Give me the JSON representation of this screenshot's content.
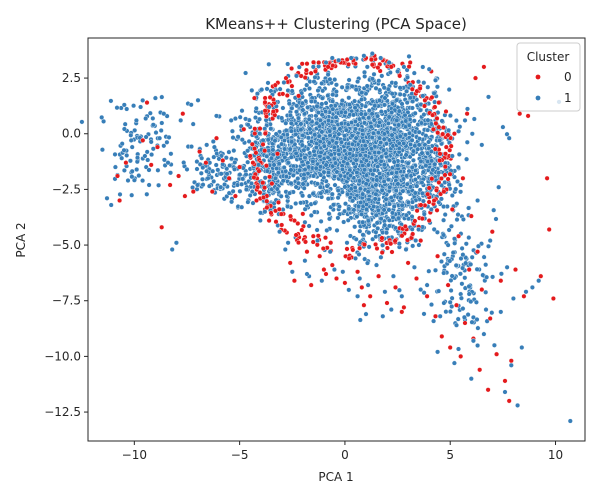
{
  "chart_data": {
    "type": "scatter",
    "title": "KMeans++ Clustering (PCA Space)",
    "xlabel": "PCA 1",
    "ylabel": "PCA 2",
    "xlim": [
      -12.2,
      11.4
    ],
    "ylim": [
      -13.8,
      4.3
    ],
    "xticks": [
      -10,
      -5,
      0,
      5,
      10
    ],
    "xtick_labels": [
      "−10",
      "−5",
      "0",
      "5",
      "10"
    ],
    "yticks": [
      2.5,
      0.0,
      -2.5,
      -5.0,
      -7.5,
      -10.0,
      -12.5
    ],
    "ytick_labels": [
      "2.5",
      "0.0",
      "−2.5",
      "−5.0",
      "−7.5",
      "−10.0",
      "−12.5"
    ],
    "grid": false,
    "legend": {
      "title": "Cluster",
      "placement": "top-right"
    },
    "series": [
      {
        "name": "0",
        "color": "#e41a1c",
        "points": [
          [
            -10.8,
            -1.9
          ],
          [
            -10.7,
            -3.0
          ],
          [
            -10.4,
            -1.3
          ],
          [
            -9.6,
            -0.3
          ],
          [
            -9.2,
            -1.4
          ],
          [
            -9.4,
            1.4
          ],
          [
            -8.9,
            -0.6
          ],
          [
            -8.7,
            -4.2
          ],
          [
            -8.3,
            -2.3
          ],
          [
            -7.9,
            -1.9
          ],
          [
            -7.6,
            -2.8
          ],
          [
            -7.7,
            0.9
          ],
          [
            -7.2,
            -2.6
          ],
          [
            -6.9,
            -0.8
          ],
          [
            -6.6,
            -1.3
          ],
          [
            -6.3,
            -2.6
          ],
          [
            -6.1,
            -0.2
          ],
          [
            -5.8,
            -1.2
          ],
          [
            -5.5,
            -2.0
          ],
          [
            -5.2,
            -2.8
          ],
          [
            -5.0,
            -1.5
          ],
          [
            -4.8,
            0.2
          ],
          [
            -4.5,
            -1.0
          ],
          [
            -4.2,
            -3.0
          ],
          [
            -4.3,
            1.6
          ],
          [
            -3.9,
            -2.2
          ],
          [
            -3.6,
            -3.9
          ],
          [
            -3.4,
            1.0
          ],
          [
            -3.2,
            -0.9
          ],
          [
            -3.0,
            -4.1
          ],
          [
            -2.8,
            2.5
          ],
          [
            -2.6,
            -5.8
          ],
          [
            -2.4,
            -6.6
          ],
          [
            -2.2,
            1.7
          ],
          [
            -2.0,
            -3.6
          ],
          [
            -1.8,
            -5.3
          ],
          [
            -1.6,
            -6.8
          ],
          [
            -1.4,
            2.8
          ],
          [
            -1.2,
            -5.5
          ],
          [
            -1.0,
            -6.1
          ],
          [
            -0.8,
            3.0
          ],
          [
            -0.6,
            -5.9
          ],
          [
            -0.4,
            -6.5
          ],
          [
            -0.2,
            3.2
          ],
          [
            0.0,
            -6.7
          ],
          [
            0.2,
            -5.6
          ],
          [
            0.4,
            3.3
          ],
          [
            0.6,
            -6.2
          ],
          [
            0.8,
            -6.9
          ],
          [
            1.0,
            3.4
          ],
          [
            1.2,
            -7.3
          ],
          [
            1.4,
            3.5
          ],
          [
            1.6,
            -6.4
          ],
          [
            1.8,
            3.3
          ],
          [
            2.0,
            -7.6
          ],
          [
            2.2,
            3.0
          ],
          [
            2.4,
            -6.9
          ],
          [
            2.6,
            2.6
          ],
          [
            2.8,
            -7.8
          ],
          [
            3.0,
            -5.8
          ],
          [
            3.2,
            2.0
          ],
          [
            3.4,
            -6.5
          ],
          [
            3.6,
            -4.8
          ],
          [
            3.8,
            1.5
          ],
          [
            3.9,
            -7.3
          ],
          [
            4.0,
            -3.9
          ],
          [
            4.1,
            2.8
          ],
          [
            4.2,
            0.2
          ],
          [
            4.3,
            -8.2
          ],
          [
            4.4,
            -5.5
          ],
          [
            4.5,
            -1.2
          ],
          [
            4.6,
            -9.1
          ],
          [
            4.7,
            -2.6
          ],
          [
            4.8,
            1.0
          ],
          [
            4.9,
            -6.8
          ],
          [
            5.0,
            -9.6
          ],
          [
            5.1,
            -3.4
          ],
          [
            5.2,
            0.0
          ],
          [
            5.3,
            -7.7
          ],
          [
            5.4,
            -4.6
          ],
          [
            5.5,
            -10.0
          ],
          [
            5.6,
            -2.0
          ],
          [
            5.7,
            -8.5
          ],
          [
            5.8,
            0.9
          ],
          [
            5.9,
            -6.1
          ],
          [
            6.0,
            -3.7
          ],
          [
            6.1,
            -9.2
          ],
          [
            6.2,
            2.5
          ],
          [
            6.3,
            -5.3
          ],
          [
            6.4,
            -10.6
          ],
          [
            6.5,
            -7.0
          ],
          [
            6.6,
            3.0
          ],
          [
            6.8,
            -11.5
          ],
          [
            6.9,
            -8.3
          ],
          [
            7.0,
            -4.4
          ],
          [
            7.2,
            -9.9
          ],
          [
            7.4,
            -6.6
          ],
          [
            7.6,
            -11.1
          ],
          [
            7.8,
            -12.0
          ],
          [
            7.9,
            -10.2
          ],
          [
            8.1,
            -6.1
          ],
          [
            8.3,
            0.9
          ],
          [
            8.5,
            -7.3
          ],
          [
            8.7,
            0.8
          ],
          [
            9.3,
            -6.4
          ],
          [
            9.6,
            -2.0
          ],
          [
            9.7,
            -4.3
          ],
          [
            9.9,
            -7.4
          ],
          [
            3.1,
            3.2
          ],
          [
            0.9,
            -7.7
          ],
          [
            -0.9,
            -6.3
          ],
          [
            2.7,
            -8.0
          ],
          [
            -1.5,
            -4.6
          ]
        ]
      },
      {
        "name": "1",
        "color": "#377eb8",
        "points": [
          [
            -11.3,
            -2.9
          ],
          [
            -11.1,
            -3.2
          ],
          [
            -10.9,
            -1.5
          ],
          [
            -10.6,
            -1.1
          ],
          [
            -10.3,
            -2.1
          ],
          [
            -10.1,
            -0.6
          ],
          [
            -9.9,
            0.6
          ],
          [
            -9.7,
            1.2
          ],
          [
            -9.5,
            -1.0
          ],
          [
            -9.3,
            -2.3
          ],
          [
            -9.1,
            0.4
          ],
          [
            -9.0,
            1.6
          ],
          [
            -8.8,
            -0.2
          ],
          [
            -8.6,
            0.9
          ],
          [
            -8.4,
            -1.3
          ],
          [
            -8.2,
            -5.2
          ],
          [
            -8.0,
            -4.9
          ],
          [
            -7.8,
            0.6
          ],
          [
            -7.5,
            -1.6
          ],
          [
            -7.3,
            1.3
          ],
          [
            -7.0,
            -2.3
          ],
          [
            -6.8,
            -1.1
          ],
          [
            -6.5,
            -2.0
          ],
          [
            -6.2,
            -0.6
          ],
          [
            -5.9,
            -2.4
          ],
          [
            -5.6,
            -1.8
          ],
          [
            -5.4,
            0.6
          ],
          [
            -5.1,
            -2.3
          ],
          [
            -4.9,
            -3.3
          ],
          [
            -4.6,
            0.4
          ],
          [
            -4.4,
            -2.6
          ],
          [
            -4.1,
            -1.4
          ],
          [
            -3.8,
            -3.5
          ],
          [
            -3.6,
            1.2
          ],
          [
            -3.3,
            -2.0
          ],
          [
            -3.1,
            -4.4
          ],
          [
            -2.9,
            2.3
          ],
          [
            -2.7,
            -4.9
          ],
          [
            -2.5,
            -6.2
          ],
          [
            -2.3,
            2.6
          ],
          [
            -2.1,
            -3.1
          ],
          [
            -1.9,
            -5.7
          ],
          [
            -1.7,
            -6.4
          ],
          [
            -1.5,
            3.0
          ],
          [
            -1.3,
            -4.8
          ],
          [
            -1.1,
            -6.6
          ],
          [
            -0.9,
            3.2
          ],
          [
            -0.7,
            -5.3
          ],
          [
            -0.5,
            -6.1
          ],
          [
            -0.3,
            3.3
          ],
          [
            -0.1,
            -6.2
          ],
          [
            0.1,
            -4.9
          ],
          [
            0.3,
            3.4
          ],
          [
            0.5,
            -5.6
          ],
          [
            0.7,
            -6.5
          ],
          [
            0.9,
            3.5
          ],
          [
            1.1,
            -6.8
          ],
          [
            1.3,
            3.6
          ],
          [
            1.5,
            -5.9
          ],
          [
            1.7,
            3.4
          ],
          [
            1.9,
            -7.1
          ],
          [
            2.1,
            3.2
          ],
          [
            2.3,
            -6.4
          ],
          [
            2.5,
            2.8
          ],
          [
            2.7,
            -7.3
          ],
          [
            2.9,
            -5.2
          ],
          [
            3.1,
            2.2
          ],
          [
            3.3,
            -6.0
          ],
          [
            3.5,
            -4.3
          ],
          [
            3.7,
            1.7
          ],
          [
            3.9,
            -6.8
          ],
          [
            4.1,
            -3.4
          ],
          [
            4.3,
            2.4
          ],
          [
            4.5,
            -0.3
          ],
          [
            4.7,
            -7.6
          ],
          [
            4.9,
            -5.0
          ],
          [
            5.1,
            -1.0
          ],
          [
            5.3,
            -8.6
          ],
          [
            5.5,
            -2.3
          ],
          [
            5.7,
            0.6
          ],
          [
            5.9,
            -7.2
          ],
          [
            6.1,
            -9.3
          ],
          [
            6.3,
            -3.0
          ],
          [
            6.5,
            -0.5
          ],
          [
            6.7,
            -7.9
          ],
          [
            6.9,
            -4.8
          ],
          [
            7.1,
            -9.5
          ],
          [
            7.3,
            -2.4
          ],
          [
            7.4,
            -8.0
          ],
          [
            7.5,
            0.3
          ],
          [
            7.7,
            -6.0
          ],
          [
            7.8,
            -0.2
          ],
          [
            7.9,
            -10.4
          ],
          [
            8.0,
            -7.4
          ],
          [
            8.2,
            -12.2
          ],
          [
            8.4,
            -9.6
          ],
          [
            8.6,
            -7.1
          ],
          [
            8.9,
            -6.9
          ],
          [
            9.2,
            -6.6
          ],
          [
            10.7,
            -12.9
          ],
          [
            1.0,
            -8.1
          ],
          [
            -1.8,
            -6.3
          ],
          [
            0.6,
            -7.3
          ],
          [
            2.2,
            -7.9
          ],
          [
            3.6,
            -7.0
          ],
          [
            4.4,
            -9.8
          ],
          [
            5.2,
            -10.3
          ],
          [
            6.0,
            -11.0
          ],
          [
            6.6,
            -9.0
          ],
          [
            7.6,
            -11.6
          ],
          [
            4.0,
            2.9
          ],
          [
            2.8,
            3.0
          ],
          [
            -0.6,
            3.4
          ],
          [
            1.8,
            -8.2
          ]
        ]
      }
    ]
  }
}
